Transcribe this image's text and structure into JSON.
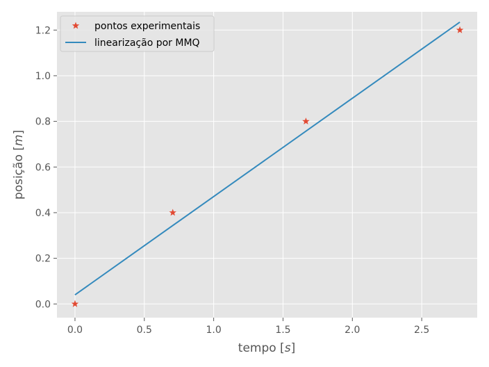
{
  "chart_data": {
    "type": "scatter",
    "xlabel": "tempo [s]",
    "xlabel_parts": [
      "tempo [",
      "s",
      "]"
    ],
    "ylabel": "posição [m]",
    "ylabel_parts": [
      "posição [",
      "m",
      "]"
    ],
    "xlim": [
      -0.13,
      2.9
    ],
    "ylim": [
      -0.06,
      1.28
    ],
    "xticks": [
      0.0,
      0.5,
      1.0,
      1.5,
      2.0,
      2.5
    ],
    "xtick_labels": [
      "0.0",
      "0.5",
      "1.0",
      "1.5",
      "2.0",
      "2.5"
    ],
    "yticks": [
      0.0,
      0.2,
      0.4,
      0.6,
      0.8,
      1.0,
      1.2
    ],
    "ytick_labels": [
      "0.0",
      "0.2",
      "0.4",
      "0.6",
      "0.8",
      "1.0",
      "1.2"
    ],
    "grid": true,
    "legend_position": "top-left",
    "series": [
      {
        "name": "pontos experimentais",
        "kind": "scatter",
        "marker": "star",
        "color": "#E24A33",
        "x": [
          0.0,
          0.705,
          1.665,
          2.775
        ],
        "y": [
          0.0,
          0.4,
          0.8,
          1.2
        ]
      },
      {
        "name": "linearização por MMQ",
        "kind": "line",
        "color": "#348ABD",
        "x": [
          0.0,
          2.775
        ],
        "y": [
          0.04,
          1.235
        ]
      }
    ]
  }
}
